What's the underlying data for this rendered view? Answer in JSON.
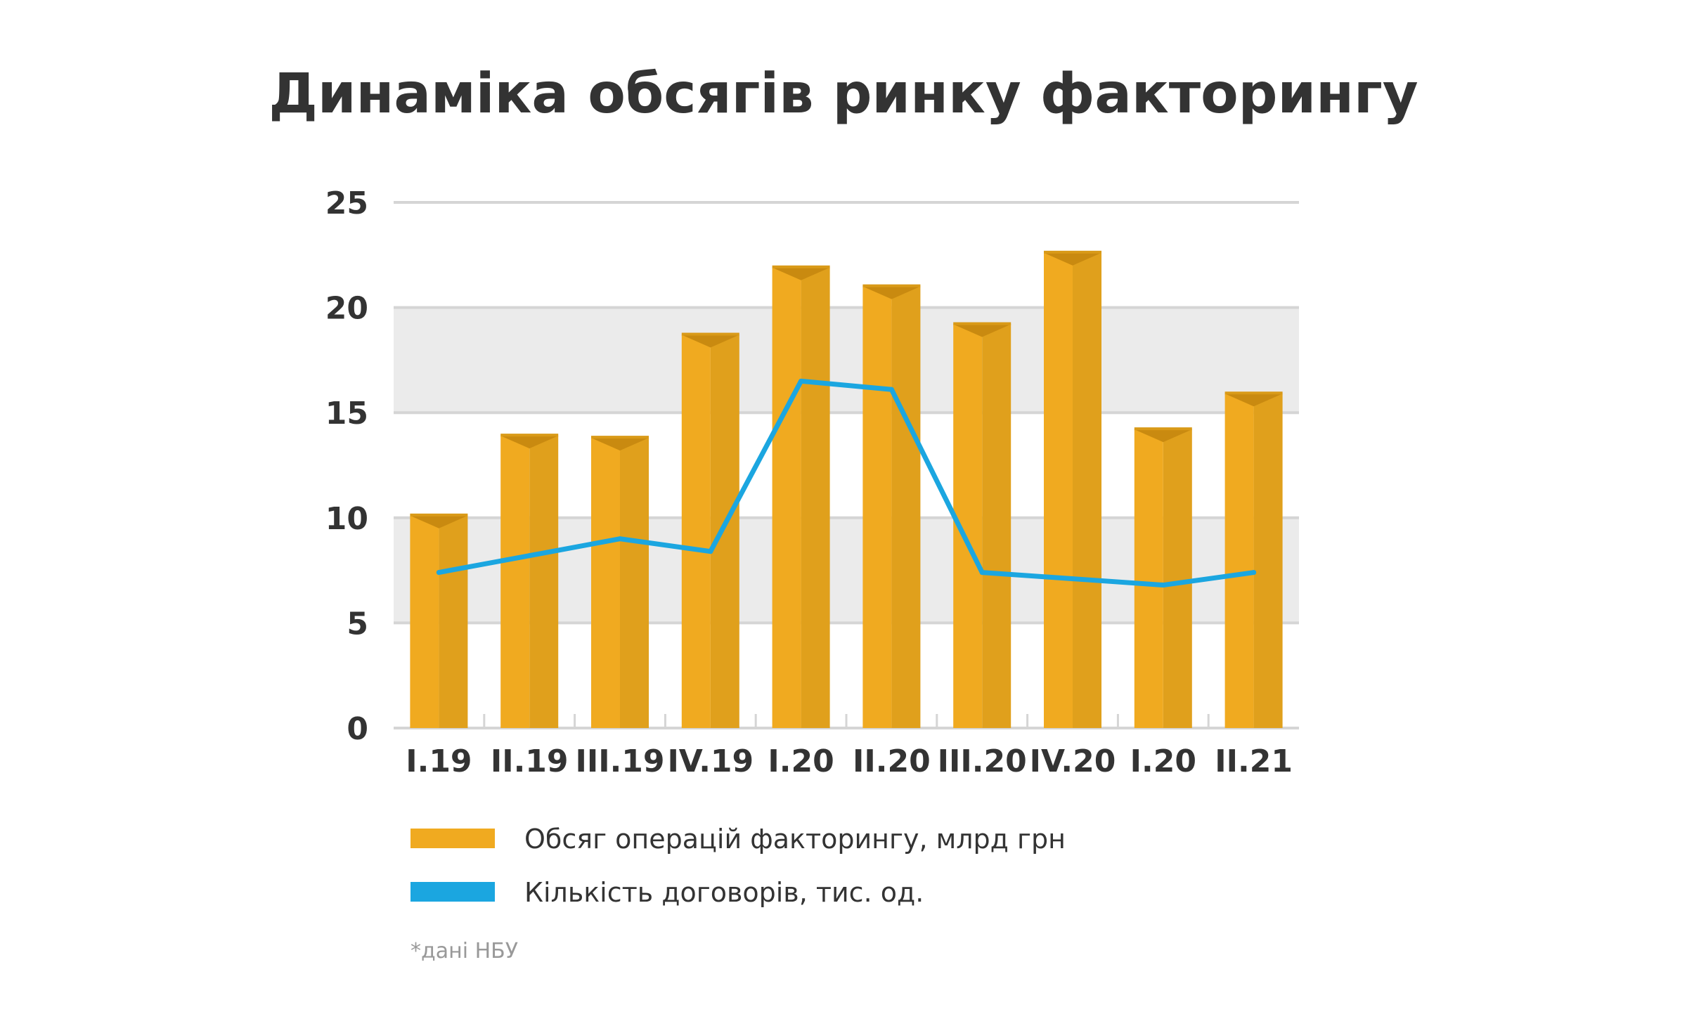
{
  "chart_data": {
    "type": "bar",
    "title": "Динаміка обсягів ринку факторингу",
    "categories": [
      "I.19",
      "II.19",
      "III.19",
      "IV.19",
      "I.20",
      "II.20",
      "III.20",
      "IV.20",
      "I.20",
      "II.21"
    ],
    "ylim": [
      0,
      25
    ],
    "yticks": [
      0,
      5,
      10,
      15,
      20,
      25
    ],
    "grid": true,
    "legend_position": "bottom-left",
    "series": [
      {
        "name": "Обсяг операцій факторингу, млрд грн",
        "type": "bar",
        "color": "#F0AA20",
        "values": [
          10.1,
          13.9,
          13.8,
          18.7,
          21.9,
          21.0,
          19.2,
          22.6,
          14.2,
          15.9
        ]
      },
      {
        "name": "Кількість договорів, тис. од.",
        "type": "line",
        "color": "#1BA6E0",
        "values": [
          7.4,
          8.2,
          9.0,
          8.4,
          16.5,
          16.1,
          7.4,
          7.1,
          6.8,
          7.4
        ]
      }
    ],
    "note": "*дані НБУ"
  }
}
